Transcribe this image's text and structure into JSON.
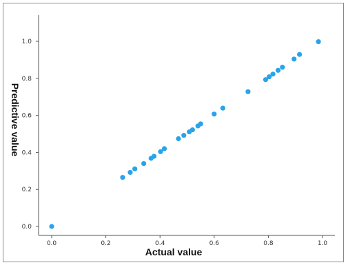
{
  "chart_data": {
    "type": "scatter",
    "title": "",
    "xlabel": "Actual value",
    "ylabel": "Predictive value",
    "xlim": [
      -0.05,
      1.02
    ],
    "ylim": [
      -0.05,
      1.12
    ],
    "xticks": [
      "0.0",
      "0.2",
      "0.4",
      "0.6",
      "0.8",
      "1.0"
    ],
    "yticks": [
      "0.0",
      "0.2",
      "0.4",
      "0.6",
      "0.8",
      "1.0"
    ],
    "grid": false,
    "point_color": "#29a3ea",
    "points": [
      {
        "x": 0.0,
        "y": 0.0
      },
      {
        "x": 0.262,
        "y": 0.265
      },
      {
        "x": 0.29,
        "y": 0.292
      },
      {
        "x": 0.307,
        "y": 0.311
      },
      {
        "x": 0.34,
        "y": 0.34
      },
      {
        "x": 0.367,
        "y": 0.368
      },
      {
        "x": 0.378,
        "y": 0.379
      },
      {
        "x": 0.402,
        "y": 0.404
      },
      {
        "x": 0.416,
        "y": 0.42
      },
      {
        "x": 0.468,
        "y": 0.474
      },
      {
        "x": 0.488,
        "y": 0.492
      },
      {
        "x": 0.508,
        "y": 0.511
      },
      {
        "x": 0.52,
        "y": 0.522
      },
      {
        "x": 0.54,
        "y": 0.543
      },
      {
        "x": 0.55,
        "y": 0.554
      },
      {
        "x": 0.6,
        "y": 0.607
      },
      {
        "x": 0.632,
        "y": 0.639
      },
      {
        "x": 0.725,
        "y": 0.728
      },
      {
        "x": 0.79,
        "y": 0.793
      },
      {
        "x": 0.803,
        "y": 0.808
      },
      {
        "x": 0.817,
        "y": 0.823
      },
      {
        "x": 0.836,
        "y": 0.843
      },
      {
        "x": 0.852,
        "y": 0.86
      },
      {
        "x": 0.895,
        "y": 0.904
      },
      {
        "x": 0.915,
        "y": 0.929
      },
      {
        "x": 0.985,
        "y": 0.998
      }
    ]
  }
}
